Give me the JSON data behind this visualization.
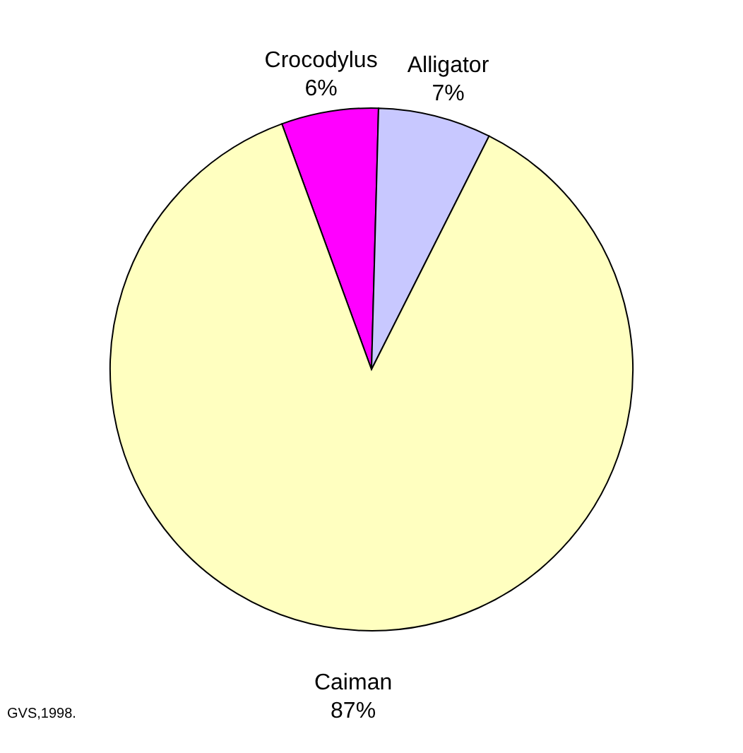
{
  "chart_data": {
    "type": "pie",
    "categories": [
      "Crocodylus",
      "Alligator",
      "Caiman"
    ],
    "values": [
      6,
      7,
      87
    ],
    "value_labels": [
      "6%",
      "7%",
      "87%"
    ],
    "colors": [
      "#ff00ff",
      "#c8c8ff",
      "#ffffc0"
    ],
    "legend": false,
    "annotations": [
      "GVS,1998."
    ]
  }
}
